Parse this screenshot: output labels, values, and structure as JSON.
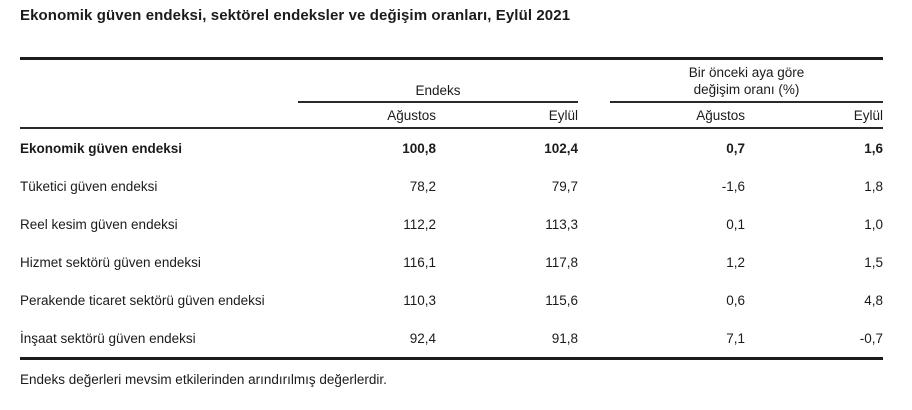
{
  "title": "Ekonomik güven endeksi, sektörel endeksler ve değişim oranları, Eylül 2021",
  "table": {
    "group1_label": "Endeks",
    "group2_line1": "Bir önceki aya göre",
    "group2_line2": "değişim oranı (%)",
    "sub_headers": [
      "Ağustos",
      "Eylül",
      "Ağustos",
      "Eylül"
    ],
    "rows": [
      {
        "label": "Ekonomik güven endeksi",
        "values": [
          "100,8",
          "102,4",
          "0,7",
          "1,6"
        ]
      },
      {
        "label": "Tüketici güven endeksi",
        "values": [
          "78,2",
          "79,7",
          "-1,6",
          "1,8"
        ]
      },
      {
        "label": "Reel kesim güven endeksi",
        "values": [
          "112,2",
          "113,3",
          "0,1",
          "1,0"
        ]
      },
      {
        "label": "Hizmet sektörü güven endeksi",
        "values": [
          "116,1",
          "117,8",
          "1,2",
          "1,5"
        ]
      },
      {
        "label": "Perakende ticaret sektörü güven endeksi",
        "values": [
          "110,3",
          "115,6",
          "0,6",
          "4,8"
        ]
      },
      {
        "label": "İnşaat sektörü güven endeksi",
        "values": [
          "92,4",
          "91,8",
          "7,1",
          "-0,7"
        ]
      }
    ]
  },
  "footnote": "Endeks değerleri mevsim etkilerinden arındırılmış değerlerdir.",
  "colors": {
    "background": "#ffffff",
    "text": "#1b1b1b",
    "rule": "#1c1c1c"
  },
  "chart_data": {
    "type": "table",
    "title": "Ekonomik güven endeksi, sektörel endeksler ve değişim oranları, Eylül 2021",
    "column_groups": [
      "Endeks",
      "Bir önceki aya göre değişim oranı (%)"
    ],
    "columns": [
      "",
      "Endeks Ağustos",
      "Endeks Eylül",
      "Bir önceki aya göre değişim oranı (%) Ağustos",
      "Bir önceki aya göre değişim oranı (%) Eylül"
    ],
    "rows": [
      [
        "Ekonomik güven endeksi",
        100.8,
        102.4,
        0.7,
        1.6
      ],
      [
        "Tüketici güven endeksi",
        78.2,
        79.7,
        -1.6,
        1.8
      ],
      [
        "Reel kesim güven endeksi",
        112.2,
        113.3,
        0.1,
        1.0
      ],
      [
        "Hizmet sektörü güven endeksi",
        116.1,
        117.8,
        1.2,
        1.5
      ],
      [
        "Perakende ticaret sektörü güven endeksi",
        110.3,
        115.6,
        0.6,
        4.8
      ],
      [
        "İnşaat sektörü güven endeksi",
        92.4,
        91.8,
        7.1,
        -0.7
      ]
    ],
    "footnote": "Endeks değerleri mevsim etkilerinden arındırılmış değerlerdir."
  }
}
